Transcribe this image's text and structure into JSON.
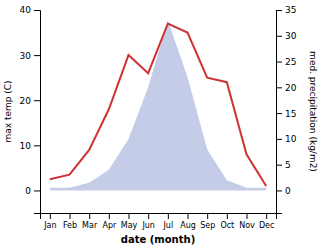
{
  "chart_data": {
    "type": "line",
    "categories": [
      "Jan",
      "Feb",
      "Mar",
      "Apr",
      "May",
      "Jun",
      "Jul",
      "Aug",
      "Sep",
      "Oct",
      "Nov",
      "Dec"
    ],
    "x_label": "date (month)",
    "y_label": "max temp (C)",
    "y2_label": "med. precipitation (kg/m2)",
    "series": [
      {
        "type": "area",
        "axis": "y2",
        "color": "#c5cce8",
        "values": [
          0.5,
          0.5,
          1.5,
          4.0,
          10.0,
          20.0,
          33.0,
          22.0,
          8.0,
          2.0,
          0.5,
          0.5
        ]
      },
      {
        "type": "line",
        "color": "#cc3333",
        "values": [
          2.5,
          3.5,
          9.0,
          18.0,
          30.0,
          26.0,
          37.0,
          35.0,
          25.0,
          24.0,
          8.0,
          1.0
        ]
      }
    ],
    "ylim": [
      -5,
      40
    ],
    "yticks": [
      0,
      10,
      20,
      30,
      40
    ],
    "y2lim": [
      -4.375,
      35
    ],
    "y2ticks": [
      0,
      5,
      10,
      15,
      20,
      25,
      30,
      35
    ],
    "grid": false
  }
}
